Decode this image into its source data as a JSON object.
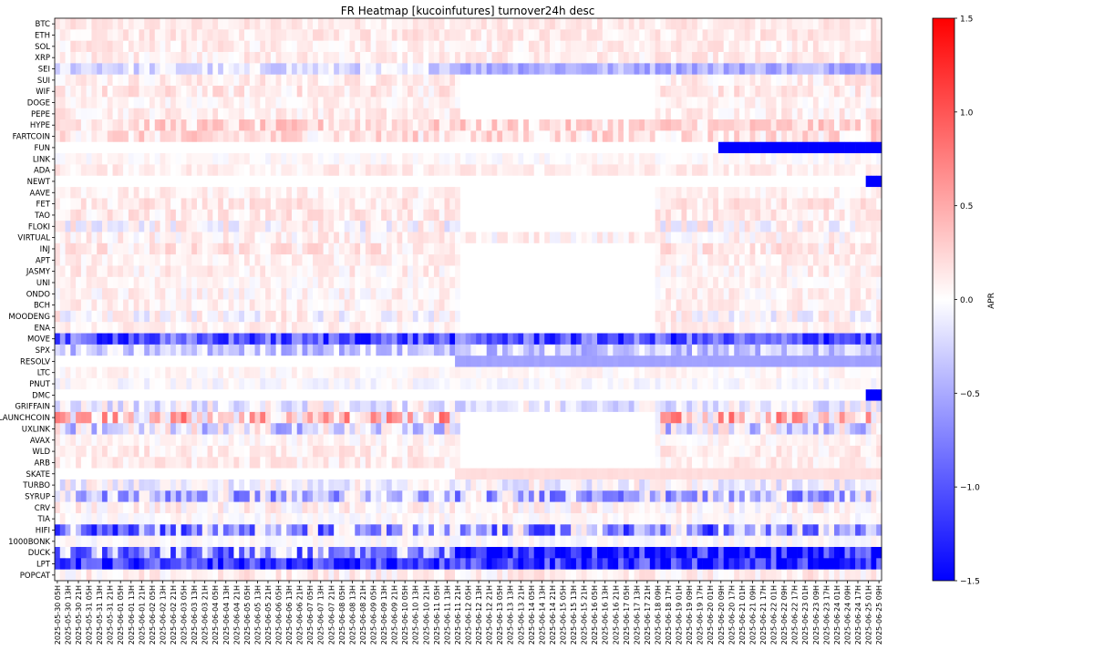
{
  "chart_data": {
    "type": "heatmap",
    "title": "FR Heatmap [kucoinfutures] turnover24h desc",
    "colorbar": {
      "label": "APR",
      "min": -1.5,
      "max": 1.5,
      "ticks": [
        1.5,
        1.0,
        0.5,
        0.0,
        -0.5,
        -1.0,
        -1.5
      ],
      "colormap": "bwr"
    },
    "rows": [
      "BTC",
      "ETH",
      "SOL",
      "XRP",
      "SEI",
      "SUI",
      "WIF",
      "DOGE",
      "PEPE",
      "HYPE",
      "FARTCOIN",
      "FUN",
      "LINK",
      "ADA",
      "NEWT",
      "AAVE",
      "FET",
      "TAO",
      "FLOKI",
      "VIRTUAL",
      "INJ",
      "APT",
      "JASMY",
      "UNI",
      "ONDO",
      "BCH",
      "MOODENG",
      "ENA",
      "MOVE",
      "SPX",
      "RESOLV",
      "LTC",
      "PNUT",
      "DMC",
      "GRIFFAIN",
      "LAUNCHCOIN",
      "UXLINK",
      "AVAX",
      "WLD",
      "ARB",
      "SKATE",
      "TURBO",
      "SYRUP",
      "CRV",
      "TIA",
      "HIFI",
      "1000BONK",
      "DUCK",
      "LPT",
      "POPCAT"
    ],
    "x_tick_labels": [
      "2025-05-30 05H",
      "2025-05-30 13H",
      "2025-05-30 21H",
      "2025-05-31 05H",
      "2025-05-31 13H",
      "2025-05-31 21H",
      "2025-06-01 05H",
      "2025-06-01 13H",
      "2025-06-01 21H",
      "2025-06-02 05H",
      "2025-06-02 13H",
      "2025-06-02 21H",
      "2025-06-03 05H",
      "2025-06-03 13H",
      "2025-06-03 21H",
      "2025-06-04 05H",
      "2025-06-04 13H",
      "2025-06-04 21H",
      "2025-06-05 05H",
      "2025-06-05 13H",
      "2025-06-05 21H",
      "2025-06-06 05H",
      "2025-06-06 13H",
      "2025-06-06 21H",
      "2025-06-07 05H",
      "2025-06-07 13H",
      "2025-06-07 21H",
      "2025-06-08 05H",
      "2025-06-08 13H",
      "2025-06-08 21H",
      "2025-06-09 05H",
      "2025-06-09 13H",
      "2025-06-09 21H",
      "2025-06-10 05H",
      "2025-06-10 13H",
      "2025-06-10 21H",
      "2025-06-11 05H",
      "2025-06-11 13H",
      "2025-06-11 21H",
      "2025-06-12 05H",
      "2025-06-12 13H",
      "2025-06-12 21H",
      "2025-06-13 05H",
      "2025-06-13 13H",
      "2025-06-13 21H",
      "2025-06-14 05H",
      "2025-06-14 13H",
      "2025-06-14 21H",
      "2025-06-15 05H",
      "2025-06-15 13H",
      "2025-06-15 21H",
      "2025-06-16 05H",
      "2025-06-16 13H",
      "2025-06-16 21H",
      "2025-06-17 05H",
      "2025-06-17 13H",
      "2025-06-17 21H",
      "2025-06-18 09H",
      "2025-06-18 17H",
      "2025-06-19 01H",
      "2025-06-19 09H",
      "2025-06-19 17H",
      "2025-06-20 01H",
      "2025-06-20 09H",
      "2025-06-20 17H",
      "2025-06-21 01H",
      "2025-06-21 09H",
      "2025-06-21 17H",
      "2025-06-22 01H",
      "2025-06-22 09H",
      "2025-06-22 17H",
      "2025-06-23 01H",
      "2025-06-23 09H",
      "2025-06-23 17H",
      "2025-06-24 01H",
      "2025-06-24 09H",
      "2025-06-24 17H",
      "2025-06-25 01H",
      "2025-06-25 09H"
    ],
    "cells_per_tick": 2,
    "columns": 157,
    "row_patterns": [
      {
        "row": "BTC",
        "mean": 0.12,
        "jitter": 0.12
      },
      {
        "row": "ETH",
        "mean": 0.12,
        "jitter": 0.14
      },
      {
        "row": "SOL",
        "mean": 0.1,
        "jitter": 0.14
      },
      {
        "row": "XRP",
        "mean": 0.1,
        "jitter": 0.14
      },
      {
        "row": "SEI",
        "mean": -0.2,
        "jitter": 0.25,
        "late_mean": -0.45
      },
      {
        "row": "SUI",
        "mean": 0.1,
        "jitter": 0.15,
        "blank": [
          [
            77,
            113
          ]
        ]
      },
      {
        "row": "WIF",
        "mean": 0.12,
        "jitter": 0.18,
        "blank": [
          [
            77,
            113
          ]
        ]
      },
      {
        "row": "DOGE",
        "mean": 0.06,
        "jitter": 0.12,
        "blank": [
          [
            77,
            113
          ]
        ]
      },
      {
        "row": "PEPE",
        "mean": 0.1,
        "jitter": 0.15,
        "blank": [
          [
            77,
            113
          ]
        ]
      },
      {
        "row": "HYPE",
        "mean": 0.22,
        "jitter": 0.25
      },
      {
        "row": "FARTCOIN",
        "mean": 0.18,
        "jitter": 0.25
      },
      {
        "row": "FUN",
        "mean": 0.0,
        "jitter": 0.02,
        "blank": [
          [
            0,
            125
          ]
        ],
        "fixed": [
          [
            126,
            156,
            -1.5
          ]
        ]
      },
      {
        "row": "LINK",
        "mean": 0.02,
        "jitter": 0.1
      },
      {
        "row": "ADA",
        "mean": 0.1,
        "jitter": 0.12
      },
      {
        "row": "NEWT",
        "mean": 0.0,
        "jitter": 0.0,
        "blank": [
          [
            0,
            153
          ]
        ],
        "fixed": [
          [
            154,
            156,
            -1.5
          ]
        ]
      },
      {
        "row": "AAVE",
        "mean": 0.08,
        "jitter": 0.12,
        "blank": [
          [
            77,
            113
          ]
        ]
      },
      {
        "row": "FET",
        "mean": 0.12,
        "jitter": 0.16,
        "blank": [
          [
            77,
            113
          ]
        ]
      },
      {
        "row": "TAO",
        "mean": 0.12,
        "jitter": 0.16,
        "blank": [
          [
            77,
            113
          ]
        ]
      },
      {
        "row": "FLOKI",
        "mean": 0.0,
        "jitter": 0.25,
        "blank": [
          [
            77,
            113
          ]
        ]
      },
      {
        "row": "VIRTUAL",
        "mean": 0.05,
        "jitter": 0.18
      },
      {
        "row": "INJ",
        "mean": 0.12,
        "jitter": 0.2,
        "blank": [
          [
            77,
            113
          ]
        ]
      },
      {
        "row": "APT",
        "mean": 0.08,
        "jitter": 0.12,
        "blank": [
          [
            77,
            113
          ]
        ]
      },
      {
        "row": "JASMY",
        "mean": 0.08,
        "jitter": 0.16,
        "blank": [
          [
            77,
            113
          ]
        ]
      },
      {
        "row": "UNI",
        "mean": 0.05,
        "jitter": 0.12,
        "blank": [
          [
            77,
            113
          ]
        ]
      },
      {
        "row": "ONDO",
        "mean": 0.06,
        "jitter": 0.16,
        "blank": [
          [
            77,
            113
          ]
        ]
      },
      {
        "row": "BCH",
        "mean": 0.08,
        "jitter": 0.14,
        "blank": [
          [
            77,
            113
          ]
        ]
      },
      {
        "row": "MOODENG",
        "mean": 0.0,
        "jitter": 0.25,
        "blank": [
          [
            77,
            113
          ]
        ]
      },
      {
        "row": "ENA",
        "mean": 0.08,
        "jitter": 0.12,
        "blank": [
          [
            77,
            113
          ]
        ]
      },
      {
        "row": "MOVE",
        "mean": -1.0,
        "jitter": 0.5
      },
      {
        "row": "SPX",
        "mean": -0.3,
        "jitter": 0.35
      },
      {
        "row": "RESOLV",
        "mean": 0.0,
        "jitter": 0.02,
        "blank": [
          [
            0,
            75
          ]
        ],
        "late_mean": -0.55
      },
      {
        "row": "LTC",
        "mean": 0.04,
        "jitter": 0.1
      },
      {
        "row": "PNUT",
        "mean": -0.02,
        "jitter": 0.12
      },
      {
        "row": "DMC",
        "mean": 0.0,
        "jitter": 0.0,
        "blank": [
          [
            0,
            153
          ]
        ],
        "fixed": [
          [
            154,
            156,
            -1.5
          ]
        ]
      },
      {
        "row": "GRIFFAIN",
        "mean": -0.1,
        "jitter": 0.3
      },
      {
        "row": "LAUNCHCOIN",
        "mean": 0.35,
        "jitter": 0.6,
        "blank": [
          [
            77,
            113
          ]
        ]
      },
      {
        "row": "UXLINK",
        "mean": -0.2,
        "jitter": 0.5,
        "blank": [
          [
            77,
            113
          ]
        ]
      },
      {
        "row": "AVAX",
        "mean": 0.05,
        "jitter": 0.12,
        "blank": [
          [
            77,
            113
          ]
        ]
      },
      {
        "row": "WLD",
        "mean": 0.1,
        "jitter": 0.15,
        "blank": [
          [
            77,
            113
          ]
        ]
      },
      {
        "row": "ARB",
        "mean": 0.1,
        "jitter": 0.15,
        "blank": [
          [
            77,
            113
          ]
        ]
      },
      {
        "row": "SKATE",
        "mean": 0.0,
        "jitter": 0.02,
        "blank": [
          [
            0,
            75
          ]
        ],
        "late_mean": 0.2
      },
      {
        "row": "TURBO",
        "mean": -0.05,
        "jitter": 0.25
      },
      {
        "row": "SYRUP",
        "mean": -0.4,
        "jitter": 0.6
      },
      {
        "row": "CRV",
        "mean": 0.05,
        "jitter": 0.2
      },
      {
        "row": "TIA",
        "mean": 0.02,
        "jitter": 0.12
      },
      {
        "row": "HIFI",
        "mean": -0.6,
        "jitter": 0.8
      },
      {
        "row": "1000BONK",
        "mean": 0.0,
        "jitter": 0.1
      },
      {
        "row": "DUCK",
        "mean": -0.6,
        "jitter": 0.7,
        "late_mean": -1.4
      },
      {
        "row": "LPT",
        "mean": -1.2,
        "jitter": 0.5
      },
      {
        "row": "POPCAT",
        "mean": 0.08,
        "jitter": 0.18
      }
    ]
  }
}
